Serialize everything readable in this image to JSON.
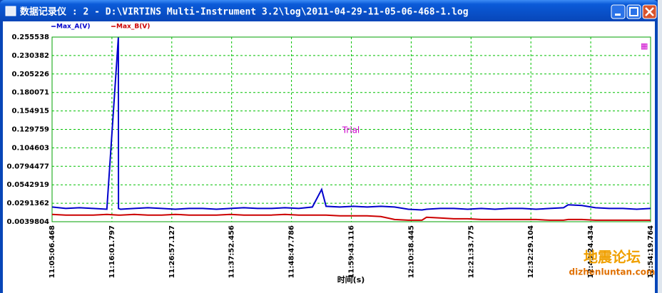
{
  "window": {
    "title": "数据记录仪 : 2 - D:\\VIRTINS Multi-Instrument 3.2\\log\\2011-04-29-11-05-06-468-1.log"
  },
  "watermark": {
    "title": "地震论坛",
    "url": "dizhenluntan.com"
  },
  "chart_data": {
    "type": "line",
    "annotation": "Trial",
    "x_label": "时间(s)",
    "x": [
      0,
      150,
      300,
      450,
      600,
      726,
      727,
      750,
      900,
      1050,
      1200,
      1350,
      1500,
      1650,
      1800,
      1950,
      2100,
      2250,
      2400,
      2550,
      2700,
      2850,
      2952,
      3000,
      3150,
      3300,
      3450,
      3600,
      3750,
      3900,
      4050,
      4100,
      4250,
      4400,
      4550,
      4700,
      4850,
      5000,
      5150,
      5300,
      5450,
      5600,
      5650,
      5800,
      5950,
      6100,
      6250,
      6400,
      6553
    ],
    "series": [
      {
        "name": "Max_A(V)",
        "color": "#0000cc",
        "values": [
          0.024,
          0.022,
          0.023,
          0.022,
          0.021,
          0.255,
          0.022,
          0.021,
          0.022,
          0.023,
          0.022,
          0.021,
          0.022,
          0.022,
          0.021,
          0.022,
          0.023,
          0.022,
          0.022,
          0.023,
          0.022,
          0.024,
          0.048,
          0.025,
          0.024,
          0.025,
          0.024,
          0.025,
          0.024,
          0.021,
          0.02,
          0.021,
          0.022,
          0.022,
          0.021,
          0.022,
          0.021,
          0.022,
          0.022,
          0.021,
          0.022,
          0.023,
          0.027,
          0.026,
          0.023,
          0.022,
          0.022,
          0.021,
          0.022
        ]
      },
      {
        "name": "Max_B(V)",
        "color": "#cc0000",
        "values": [
          0.014,
          0.013,
          0.013,
          0.013,
          0.014,
          0.013,
          0.013,
          0.013,
          0.014,
          0.013,
          0.013,
          0.014,
          0.013,
          0.013,
          0.013,
          0.014,
          0.013,
          0.013,
          0.013,
          0.014,
          0.013,
          0.013,
          0.013,
          0.013,
          0.012,
          0.012,
          0.012,
          0.011,
          0.007,
          0.006,
          0.006,
          0.01,
          0.009,
          0.008,
          0.008,
          0.007,
          0.007,
          0.007,
          0.007,
          0.007,
          0.006,
          0.006,
          0.007,
          0.007,
          0.006,
          0.006,
          0.006,
          0.006,
          0.006
        ]
      }
    ],
    "xlim": [
      0,
      6553.296
    ],
    "xticks": [
      {
        "value": 0,
        "label": "11:05:06.468"
      },
      {
        "value": 655.3296,
        "label": "11:16:01.797"
      },
      {
        "value": 1310.6592,
        "label": "11:26:57.127"
      },
      {
        "value": 1965.9888,
        "label": "11:37:52.456"
      },
      {
        "value": 2621.3184,
        "label": "11:48:47.786"
      },
      {
        "value": 3276.648,
        "label": "11:59:43.116"
      },
      {
        "value": 3931.9776,
        "label": "12:10:38.445"
      },
      {
        "value": 4587.3072,
        "label": "12:21:33.775"
      },
      {
        "value": 5242.6368,
        "label": "12:32:29.104"
      },
      {
        "value": 5897.9664,
        "label": "12:43:24.434"
      },
      {
        "value": 6553.296,
        "label": "12:54:19.764"
      }
    ],
    "ylim": [
      0.0039804,
      0.255538
    ],
    "yticks": [
      0.0039804,
      0.0291362,
      0.0542919,
      0.0794477,
      0.104603,
      0.129759,
      0.154915,
      0.180071,
      0.205226,
      0.230382,
      0.255538
    ],
    "grid": true,
    "grid_color": "#00c000"
  }
}
